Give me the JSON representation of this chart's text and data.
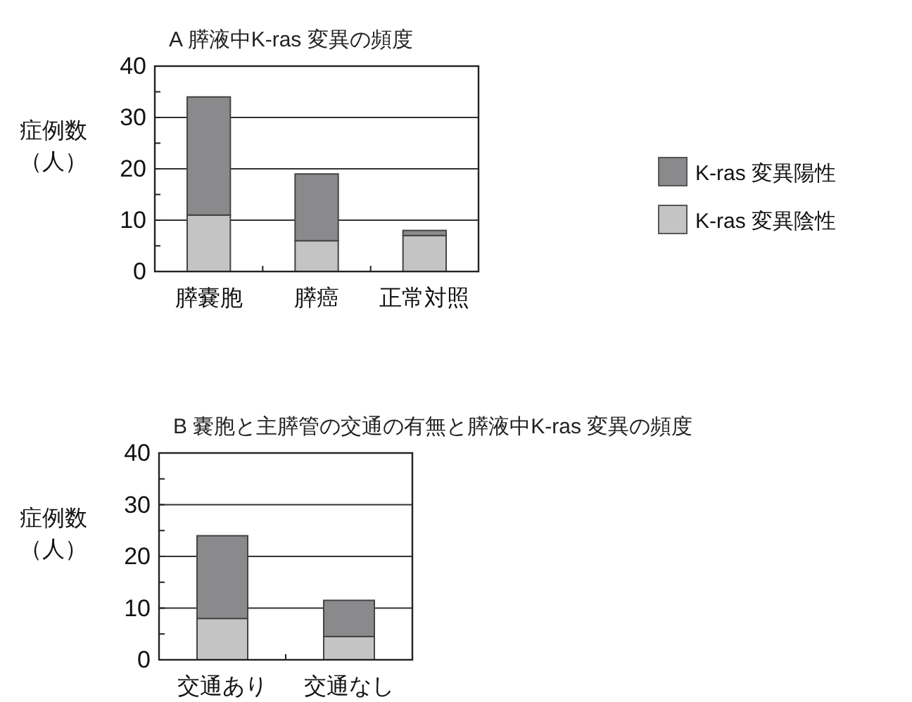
{
  "chart_data": [
    {
      "type": "bar",
      "title": "A  膵液中K-ras 変異の頻度",
      "ylabel": "症例数（人）",
      "categories": [
        "膵嚢胞",
        "膵癌",
        "正常対照"
      ],
      "stacked": true,
      "ylim": [
        0,
        40
      ],
      "yticks": [
        0,
        {
          "value": 5,
          "label": null
        },
        10,
        {
          "value": 15,
          "label": null
        },
        20,
        {
          "value": 25,
          "label": null
        },
        30,
        {
          "value": 35,
          "label": null
        },
        40
      ],
      "grid": "y",
      "legend": "right",
      "series": [
        {
          "name": "K-ras 変異陰性",
          "color": "#c4c4c4",
          "values": [
            11,
            6,
            7
          ]
        },
        {
          "name": "K-ras 変異陽性",
          "color": "#8a8a8c",
          "values": [
            23,
            13,
            1
          ]
        }
      ]
    },
    {
      "type": "bar",
      "title": "B  嚢胞と主膵管の交通の有無と膵液中K-ras 変異の頻度",
      "ylabel": "症例数（人）",
      "categories": [
        "交通あり",
        "交通なし"
      ],
      "stacked": true,
      "ylim": [
        0,
        40
      ],
      "yticks": [
        0,
        {
          "value": 5,
          "label": null
        },
        10,
        {
          "value": 15,
          "label": null
        },
        20,
        {
          "value": 25,
          "label": null
        },
        30,
        {
          "value": 35,
          "label": null
        },
        40
      ],
      "grid": "y",
      "series": [
        {
          "color": "#c4c4c4",
          "values": [
            8,
            4.5
          ]
        },
        {
          "color": "#8a8a8c",
          "values": [
            16,
            7
          ]
        }
      ]
    }
  ]
}
